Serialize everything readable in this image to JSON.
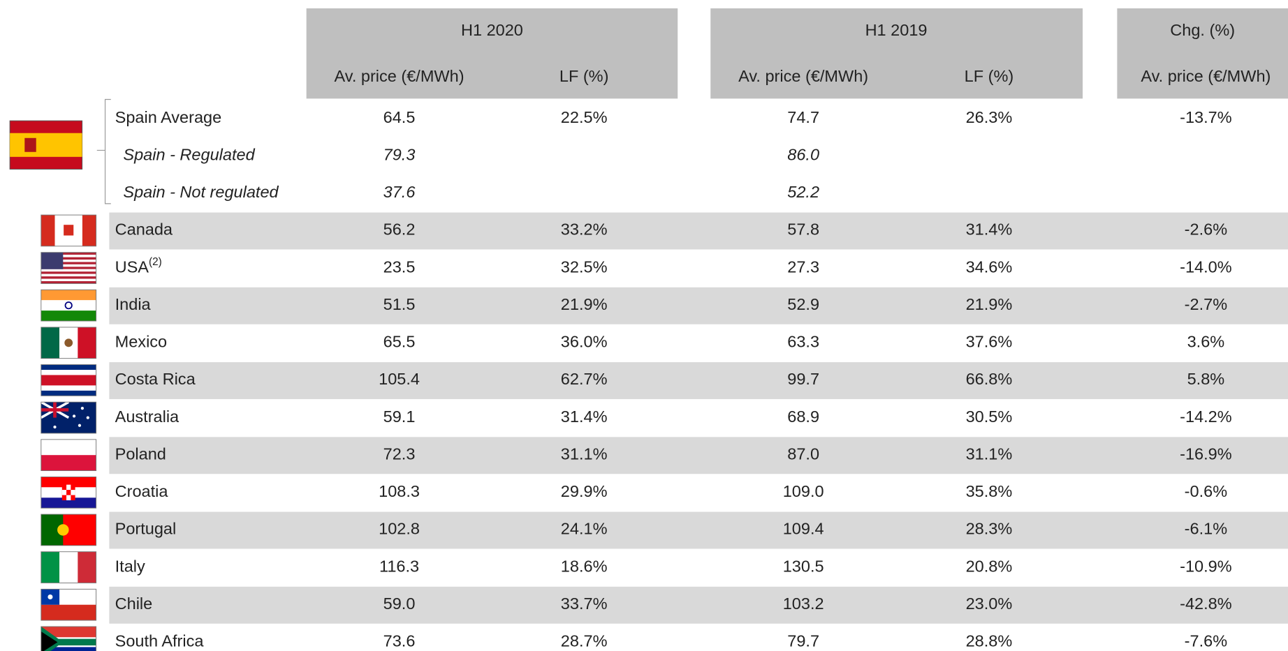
{
  "table": {
    "groups": [
      "H1 2020",
      "H1 2019",
      "Chg. (%)"
    ],
    "columns": [
      "Av. price (€/MWh)",
      "LF (%)",
      "Av. price (€/MWh)",
      "LF (%)",
      "Av. price (€/MWh)"
    ],
    "rows": [
      {
        "name": "Spain Average",
        "cells": [
          "64.5",
          "22.5%",
          "74.7",
          "26.3%",
          "-13.7%"
        ]
      },
      {
        "name": "Spain - Regulated",
        "cells": [
          "79.3",
          null,
          "86.0",
          null,
          null
        ]
      },
      {
        "name": "Spain - Not regulated",
        "cells": [
          "37.6",
          null,
          "52.2",
          null,
          null
        ]
      },
      {
        "name": "Canada",
        "cells": [
          "56.2",
          "33.2%",
          "57.8",
          "31.4%",
          "-2.6%"
        ]
      },
      {
        "name": "USA",
        "note": "(2)",
        "cells": [
          "23.5",
          "32.5%",
          "27.3",
          "34.6%",
          "-14.0%"
        ]
      },
      {
        "name": "India",
        "cells": [
          "51.5",
          "21.9%",
          "52.9",
          "21.9%",
          "-2.7%"
        ]
      },
      {
        "name": "Mexico",
        "cells": [
          "65.5",
          "36.0%",
          "63.3",
          "37.6%",
          "3.6%"
        ]
      },
      {
        "name": "Costa Rica",
        "cells": [
          "105.4",
          "62.7%",
          "99.7",
          "66.8%",
          "5.8%"
        ]
      },
      {
        "name": "Australia",
        "cells": [
          "59.1",
          "31.4%",
          "68.9",
          "30.5%",
          "-14.2%"
        ]
      },
      {
        "name": "Poland",
        "cells": [
          "72.3",
          "31.1%",
          "87.0",
          "31.1%",
          "-16.9%"
        ]
      },
      {
        "name": "Croatia",
        "cells": [
          "108.3",
          "29.9%",
          "109.0",
          "35.8%",
          "-0.6%"
        ]
      },
      {
        "name": "Portugal",
        "cells": [
          "102.8",
          "24.1%",
          "109.4",
          "28.3%",
          "-6.1%"
        ]
      },
      {
        "name": "Italy",
        "cells": [
          "116.3",
          "18.6%",
          "130.5",
          "20.8%",
          "-10.9%"
        ]
      },
      {
        "name": "Chile",
        "cells": [
          "59.0",
          "33.7%",
          "103.2",
          "23.0%",
          "-42.8%"
        ]
      },
      {
        "name": "South Africa",
        "cells": [
          "73.6",
          "28.7%",
          "79.7",
          "28.8%",
          "-7.6%"
        ]
      }
    ]
  }
}
